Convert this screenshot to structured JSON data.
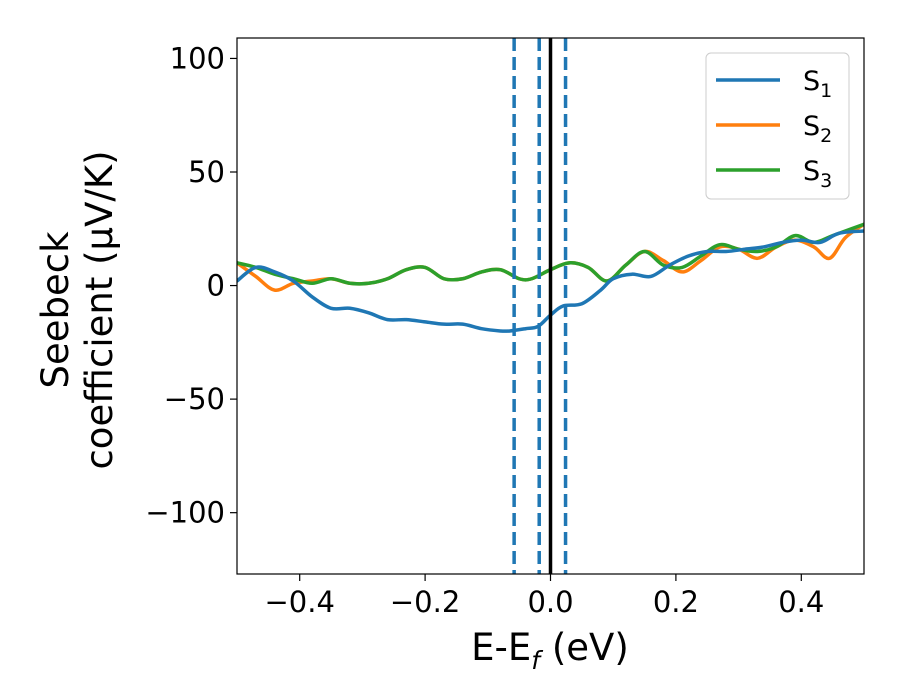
{
  "chart_data": {
    "type": "line",
    "xlabel": "E-E",
    "xlabel_sub": "f",
    "xlabel_unit": " (eV)",
    "ylabel_line1": "Seebeck",
    "ylabel_line2": "coefficient  (μV/K)",
    "xlim": [
      -0.5,
      0.5
    ],
    "ylim": [
      -127,
      109
    ],
    "xticks": [
      -0.4,
      -0.2,
      0.0,
      0.2,
      0.4
    ],
    "xtick_labels": [
      "−0.4",
      "−0.2",
      "0.0",
      "0.2",
      "0.4"
    ],
    "yticks": [
      100,
      50,
      0,
      -50,
      -100
    ],
    "ytick_labels": [
      "100",
      "50",
      "0",
      "−50",
      "−100"
    ],
    "grid": false,
    "legend_position": "top-right",
    "vertical_lines": [
      {
        "x": -0.058,
        "style": "dashed",
        "color": "#1f77b4"
      },
      {
        "x": -0.018,
        "style": "dashed",
        "color": "#1f77b4"
      },
      {
        "x": 0.024,
        "style": "dashed",
        "color": "#1f77b4"
      },
      {
        "x": 0.0,
        "style": "solid",
        "color": "#000000"
      }
    ],
    "series": [
      {
        "name": "S",
        "name_sub": "1",
        "color": "#1f77b4",
        "x": [
          -0.5,
          -0.47,
          -0.44,
          -0.41,
          -0.38,
          -0.35,
          -0.32,
          -0.29,
          -0.26,
          -0.23,
          -0.2,
          -0.17,
          -0.14,
          -0.11,
          -0.08,
          -0.065,
          -0.04,
          -0.02,
          0.0,
          0.02,
          0.05,
          0.08,
          0.1,
          0.13,
          0.16,
          0.19,
          0.22,
          0.25,
          0.28,
          0.31,
          0.34,
          0.37,
          0.4,
          0.43,
          0.46,
          0.5
        ],
        "y": [
          2,
          8,
          6,
          2,
          -5,
          -10,
          -10,
          -12,
          -15,
          -15,
          -16,
          -17,
          -17,
          -19,
          -20,
          -20,
          -19,
          -18,
          -13,
          -9,
          -8,
          -2,
          3,
          5,
          4,
          9,
          13,
          15,
          15,
          16,
          17,
          19,
          20,
          19,
          23,
          24
        ]
      },
      {
        "name": "S",
        "name_sub": "2",
        "color": "#ff7f0e",
        "x": [
          -0.5,
          -0.47,
          -0.44,
          -0.41,
          -0.38,
          -0.35,
          -0.32,
          -0.29,
          -0.26,
          -0.23,
          -0.2,
          -0.17,
          -0.14,
          -0.11,
          -0.08,
          -0.05,
          -0.03,
          0.0,
          0.03,
          0.06,
          0.09,
          0.12,
          0.15,
          0.18,
          0.21,
          0.24,
          0.27,
          0.3,
          0.33,
          0.36,
          0.39,
          0.42,
          0.445,
          0.47,
          0.5
        ],
        "y": [
          10,
          4,
          -2,
          1,
          2,
          3,
          1,
          1,
          3,
          7,
          8,
          3,
          3,
          6,
          7,
          3,
          3,
          7,
          10,
          8,
          2,
          9,
          15,
          11,
          6,
          11,
          17,
          16,
          12,
          17,
          20,
          17,
          12,
          21,
          27
        ]
      },
      {
        "name": "S",
        "name_sub": "3",
        "color": "#2ca02c",
        "x": [
          -0.5,
          -0.47,
          -0.44,
          -0.41,
          -0.38,
          -0.35,
          -0.32,
          -0.29,
          -0.26,
          -0.23,
          -0.2,
          -0.17,
          -0.14,
          -0.11,
          -0.08,
          -0.05,
          -0.03,
          0.0,
          0.03,
          0.06,
          0.09,
          0.12,
          0.15,
          0.18,
          0.21,
          0.24,
          0.27,
          0.3,
          0.33,
          0.36,
          0.39,
          0.42,
          0.45,
          0.48,
          0.5
        ],
        "y": [
          10,
          8,
          5,
          3,
          1,
          3,
          1,
          1,
          3,
          7,
          8,
          3,
          3,
          6,
          7,
          3,
          3,
          7,
          10,
          8,
          2,
          9,
          15,
          9,
          8,
          13,
          18,
          16,
          15,
          17,
          22,
          19,
          22,
          25,
          27
        ]
      }
    ]
  }
}
